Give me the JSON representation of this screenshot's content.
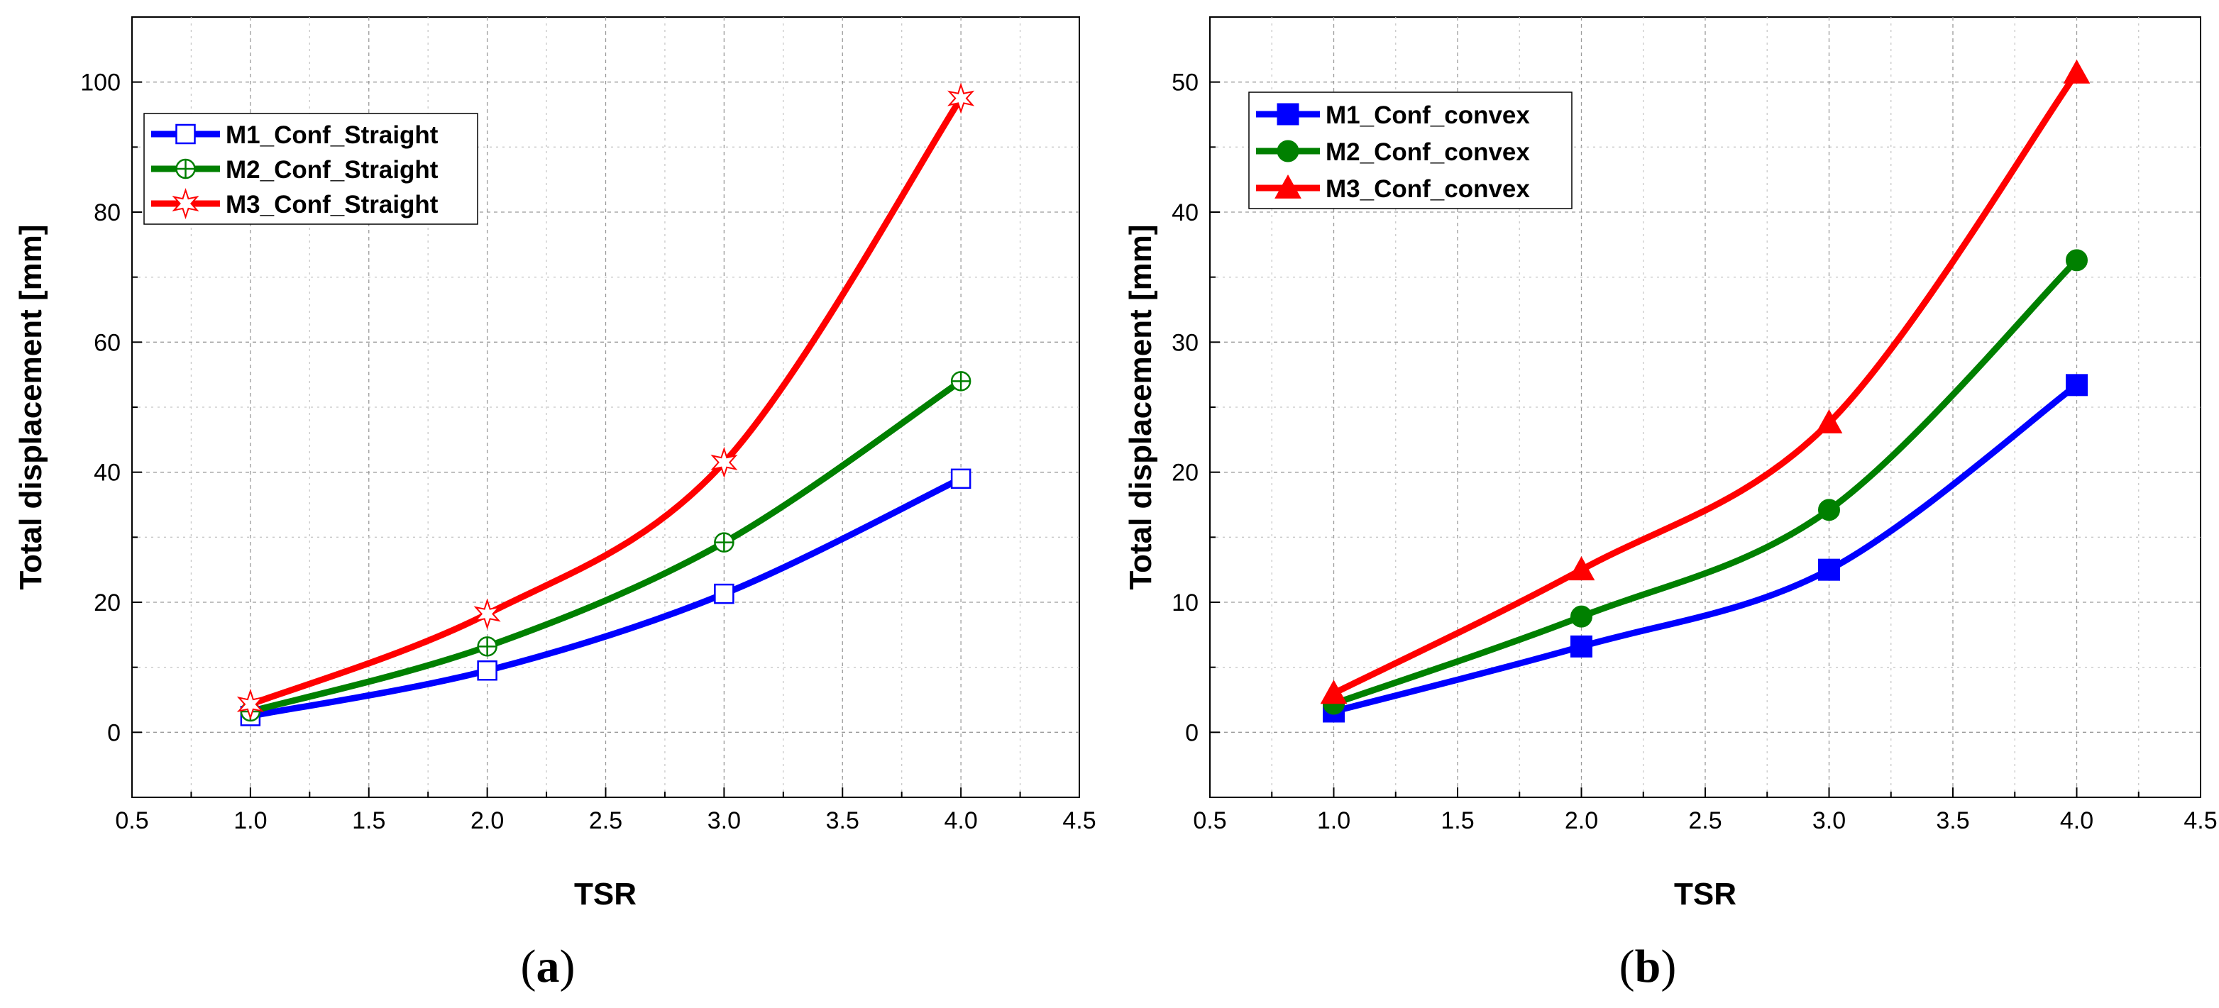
{
  "chart_data": [
    {
      "type": "line",
      "panel_label": "a",
      "xlabel": "TSR",
      "ylabel": "Total displacement [mm]",
      "xlim": [
        0.5,
        4.5
      ],
      "ylim": [
        -10,
        110
      ],
      "xticks": [
        0.5,
        1.0,
        1.5,
        2.0,
        2.5,
        3.0,
        3.5,
        4.0,
        4.5
      ],
      "xtick_labels": [
        "0.5",
        "1.0",
        "1.5",
        "2.0",
        "2.5",
        "3.0",
        "3.5",
        "4.0",
        "4.5"
      ],
      "yticks": [
        0,
        20,
        40,
        60,
        80,
        100
      ],
      "ytick_labels": [
        "0",
        "20",
        "40",
        "60",
        "80",
        "100"
      ],
      "grid": true,
      "legend_position": "top-left",
      "x": [
        1.0,
        2.0,
        3.0,
        4.0
      ],
      "series": [
        {
          "name": "M1_Conf_Straight",
          "values": [
            2.5,
            9.5,
            21.3,
            39.0
          ],
          "color": "#0000ff",
          "marker": "open-square"
        },
        {
          "name": "M2_Conf_Straight",
          "values": [
            3.2,
            13.2,
            29.2,
            54.0
          ],
          "color": "#008000",
          "marker": "open-circle-cross"
        },
        {
          "name": "M3_Conf_Straight",
          "values": [
            4.3,
            18.2,
            41.5,
            97.5
          ],
          "color": "#ff0000",
          "marker": "open-star"
        }
      ]
    },
    {
      "type": "line",
      "panel_label": "b",
      "xlabel": "TSR",
      "ylabel": "Total displacement [mm]",
      "xlim": [
        0.5,
        4.5
      ],
      "ylim": [
        -5,
        55
      ],
      "xticks": [
        0.5,
        1.0,
        1.5,
        2.0,
        2.5,
        3.0,
        3.5,
        4.0,
        4.5
      ],
      "xtick_labels": [
        "0.5",
        "1.0",
        "1.5",
        "2.0",
        "2.5",
        "3.0",
        "3.5",
        "4.0",
        "4.5"
      ],
      "yticks": [
        0,
        10,
        20,
        30,
        40,
        50
      ],
      "ytick_labels": [
        "0",
        "10",
        "20",
        "30",
        "40",
        "50"
      ],
      "grid": true,
      "legend_position": "top-left",
      "x": [
        1.0,
        2.0,
        3.0,
        4.0
      ],
      "series": [
        {
          "name": "M1_Conf_convex",
          "values": [
            1.6,
            6.6,
            12.5,
            26.7
          ],
          "color": "#0000ff",
          "marker": "filled-square"
        },
        {
          "name": "M2_Conf_convex",
          "values": [
            2.2,
            8.9,
            17.1,
            36.3
          ],
          "color": "#008000",
          "marker": "filled-circle"
        },
        {
          "name": "M3_Conf_convex",
          "values": [
            3.0,
            12.5,
            23.8,
            50.7
          ],
          "color": "#ff0000",
          "marker": "filled-triangle"
        }
      ]
    }
  ]
}
